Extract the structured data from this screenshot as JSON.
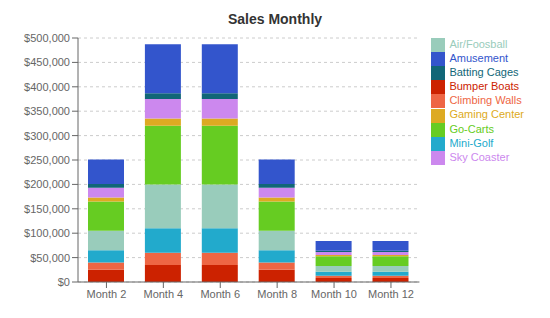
{
  "chart_data": {
    "type": "bar",
    "title": "Sales Monthly",
    "stacked": true,
    "grid": true,
    "legend": "right",
    "categories": [
      "Month 2",
      "Month 4",
      "Month 6",
      "Month 8",
      "Month 10",
      "Month 12"
    ],
    "series": [
      {
        "name": "Bumper Boats",
        "color": "#cc2200",
        "values": [
          25000,
          35000,
          35000,
          25000,
          8000,
          8000
        ]
      },
      {
        "name": "Climbing Walls",
        "color": "#ee6644",
        "values": [
          15000,
          25000,
          25000,
          15000,
          5000,
          5000
        ]
      },
      {
        "name": "Mini-Golf",
        "color": "#22aacc",
        "values": [
          25000,
          50000,
          50000,
          25000,
          8000,
          8000
        ]
      },
      {
        "name": "Air/Foosball",
        "color": "#99ccbb",
        "values": [
          40000,
          90000,
          90000,
          40000,
          12000,
          12000
        ]
      },
      {
        "name": "Go-Carts",
        "color": "#66cc22",
        "values": [
          60000,
          120000,
          120000,
          60000,
          20000,
          20000
        ]
      },
      {
        "name": "Gaming Center",
        "color": "#ddaa22",
        "values": [
          8000,
          15000,
          15000,
          8000,
          2500,
          2500
        ]
      },
      {
        "name": "Sky Coaster",
        "color": "#cc88ee",
        "values": [
          20000,
          40000,
          40000,
          20000,
          6000,
          6000
        ]
      },
      {
        "name": "Batting Cages",
        "color": "#116677",
        "values": [
          8000,
          12000,
          12000,
          8000,
          2500,
          2500
        ]
      },
      {
        "name": "Amusement",
        "color": "#3355cc",
        "values": [
          50000,
          100000,
          100000,
          50000,
          20000,
          20000
        ]
      }
    ],
    "ylim": [
      0,
      500000
    ],
    "yticks": [
      {
        "value": 0,
        "label": "$0"
      },
      {
        "value": 50000,
        "label": "$50,000"
      },
      {
        "value": 100000,
        "label": "$100,000"
      },
      {
        "value": 150000,
        "label": "$150,000"
      },
      {
        "value": 200000,
        "label": "$200,000"
      },
      {
        "value": 250000,
        "label": "$250,000"
      },
      {
        "value": 300000,
        "label": "$300,000"
      },
      {
        "value": 350000,
        "label": "$350,000"
      },
      {
        "value": 400000,
        "label": "$400,000"
      },
      {
        "value": 450000,
        "label": "$450,000"
      },
      {
        "value": 500000,
        "label": "$500,000"
      }
    ]
  }
}
